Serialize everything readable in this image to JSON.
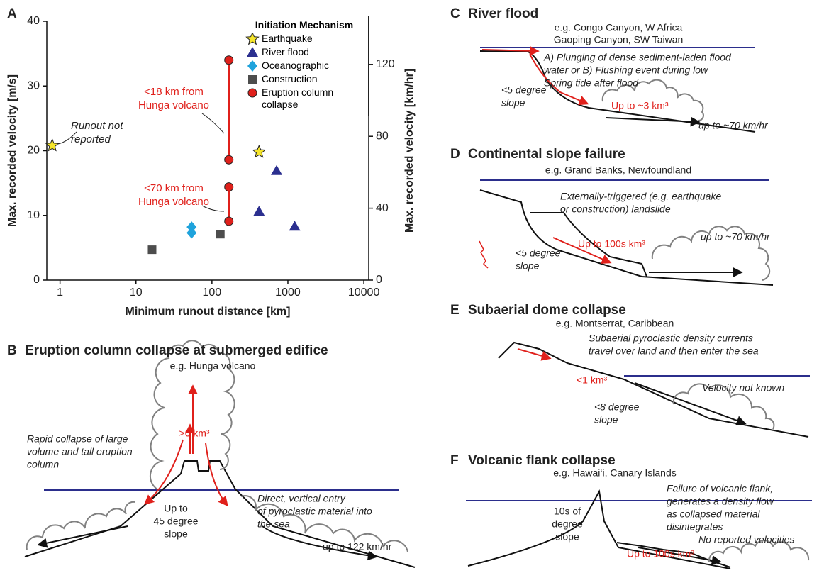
{
  "chart_data": {
    "type": "scatter",
    "panel_label": "A",
    "x_label": "Minimum runout distance [km]",
    "y_label": "Max. recorded velocity [m/s]",
    "y2_label": "Max. recorded velocity [km/hr]",
    "log_x": true,
    "xlim": [
      0.67,
      11600
    ],
    "xticks": [
      1,
      10,
      100,
      1000,
      10000
    ],
    "ylim": [
      0,
      40
    ],
    "yticks": [
      0,
      10,
      20,
      30,
      40
    ],
    "y2lim": [
      0,
      144
    ],
    "y2ticks": [
      0,
      40,
      80,
      120
    ],
    "legend_title": "Initiation Mechanism",
    "series": [
      {
        "name": "Earthquake",
        "color": "#f5e52a",
        "marker": "star",
        "x": [
          0.79,
          417
        ],
        "values": [
          20.8,
          19.8
        ]
      },
      {
        "name": "River flood",
        "color": "#2b2f8f",
        "marker": "triangle",
        "x": [
          710,
          417,
          1230
        ],
        "values": [
          16.9,
          10.6,
          8.3
        ]
      },
      {
        "name": "Oceanographic",
        "color": "#1fa3dc",
        "marker": "diamond",
        "x": [
          54,
          54
        ],
        "values": [
          8.2,
          7.3
        ]
      },
      {
        "name": "Construction",
        "color": "#4d4d4d",
        "marker": "square",
        "x": [
          16.3,
          129
        ],
        "values": [
          4.7,
          7.1
        ]
      },
      {
        "name": "Eruption column collapse",
        "color": "#e0201b",
        "marker": "circle",
        "x": [
          167,
          167,
          167,
          167
        ],
        "values": [
          34.0,
          18.6,
          14.4,
          9.1
        ]
      }
    ],
    "annotations": [
      [
        "Runout not",
        "reported"
      ],
      [
        "<18 km from",
        "Hunga volcano"
      ],
      [
        "<70 km from",
        "Hunga volcano"
      ]
    ]
  },
  "panels": [
    {
      "label": "B",
      "title": "Eruption column collapse at submerged edifice",
      "example": [
        "e.g. Hunga volcano"
      ],
      "texts": [
        [
          ">6 km³"
        ],
        [
          "Rapid collapse of large",
          "volume and tall eruption",
          "column"
        ],
        [
          "Up to",
          "45 degree",
          "slope"
        ],
        [
          "Direct, vertical entry",
          "of pyroclastic material into",
          "the sea"
        ],
        [
          "up to 122 km/hr"
        ]
      ]
    },
    {
      "label": "C",
      "title": "River flood",
      "example": [
        "e.g. Congo Canyon, W Africa",
        "Gaoping Canyon, SW Taiwan"
      ],
      "texts": [
        [
          "A) Plunging of dense sediment-laden flood",
          "water or B) Flushing event during low",
          "Spring tide after flood"
        ],
        [
          "<5 degree",
          "slope"
        ],
        [
          "Up to ~3 km³"
        ],
        [
          "up to ~70 km/hr"
        ]
      ]
    },
    {
      "label": "D",
      "title": "Continental slope failure",
      "example": [
        "e.g. Grand Banks, Newfoundland"
      ],
      "texts": [
        [
          "Externally-triggered (e.g. earthquake",
          "or construction) landslide"
        ],
        [
          "Up to 100s km³"
        ],
        [
          "<5 degree",
          "slope"
        ],
        [
          "up to ~70 km/hr"
        ]
      ]
    },
    {
      "label": "E",
      "title": "Subaerial dome collapse",
      "example": [
        "e.g. Montserrat, Caribbean"
      ],
      "texts": [
        [
          "Subaerial pyroclastic density currents",
          "travel over land and then enter the sea"
        ],
        [
          "<1 km³"
        ],
        [
          "Velocity not known"
        ],
        [
          "<8 degree",
          "slope"
        ]
      ]
    },
    {
      "label": "F",
      "title": "Volcanic flank collapse",
      "example": [
        "e.g. Hawai‘i, Canary Islands"
      ],
      "texts": [
        [
          "Failure of volcanic flank,",
          "generates a density flow",
          "as collapsed material",
          "disintegrates"
        ],
        [
          "10s of",
          "degree",
          "slope"
        ],
        [
          "Up to 100s km³"
        ],
        [
          "No reported velocities"
        ]
      ]
    }
  ]
}
